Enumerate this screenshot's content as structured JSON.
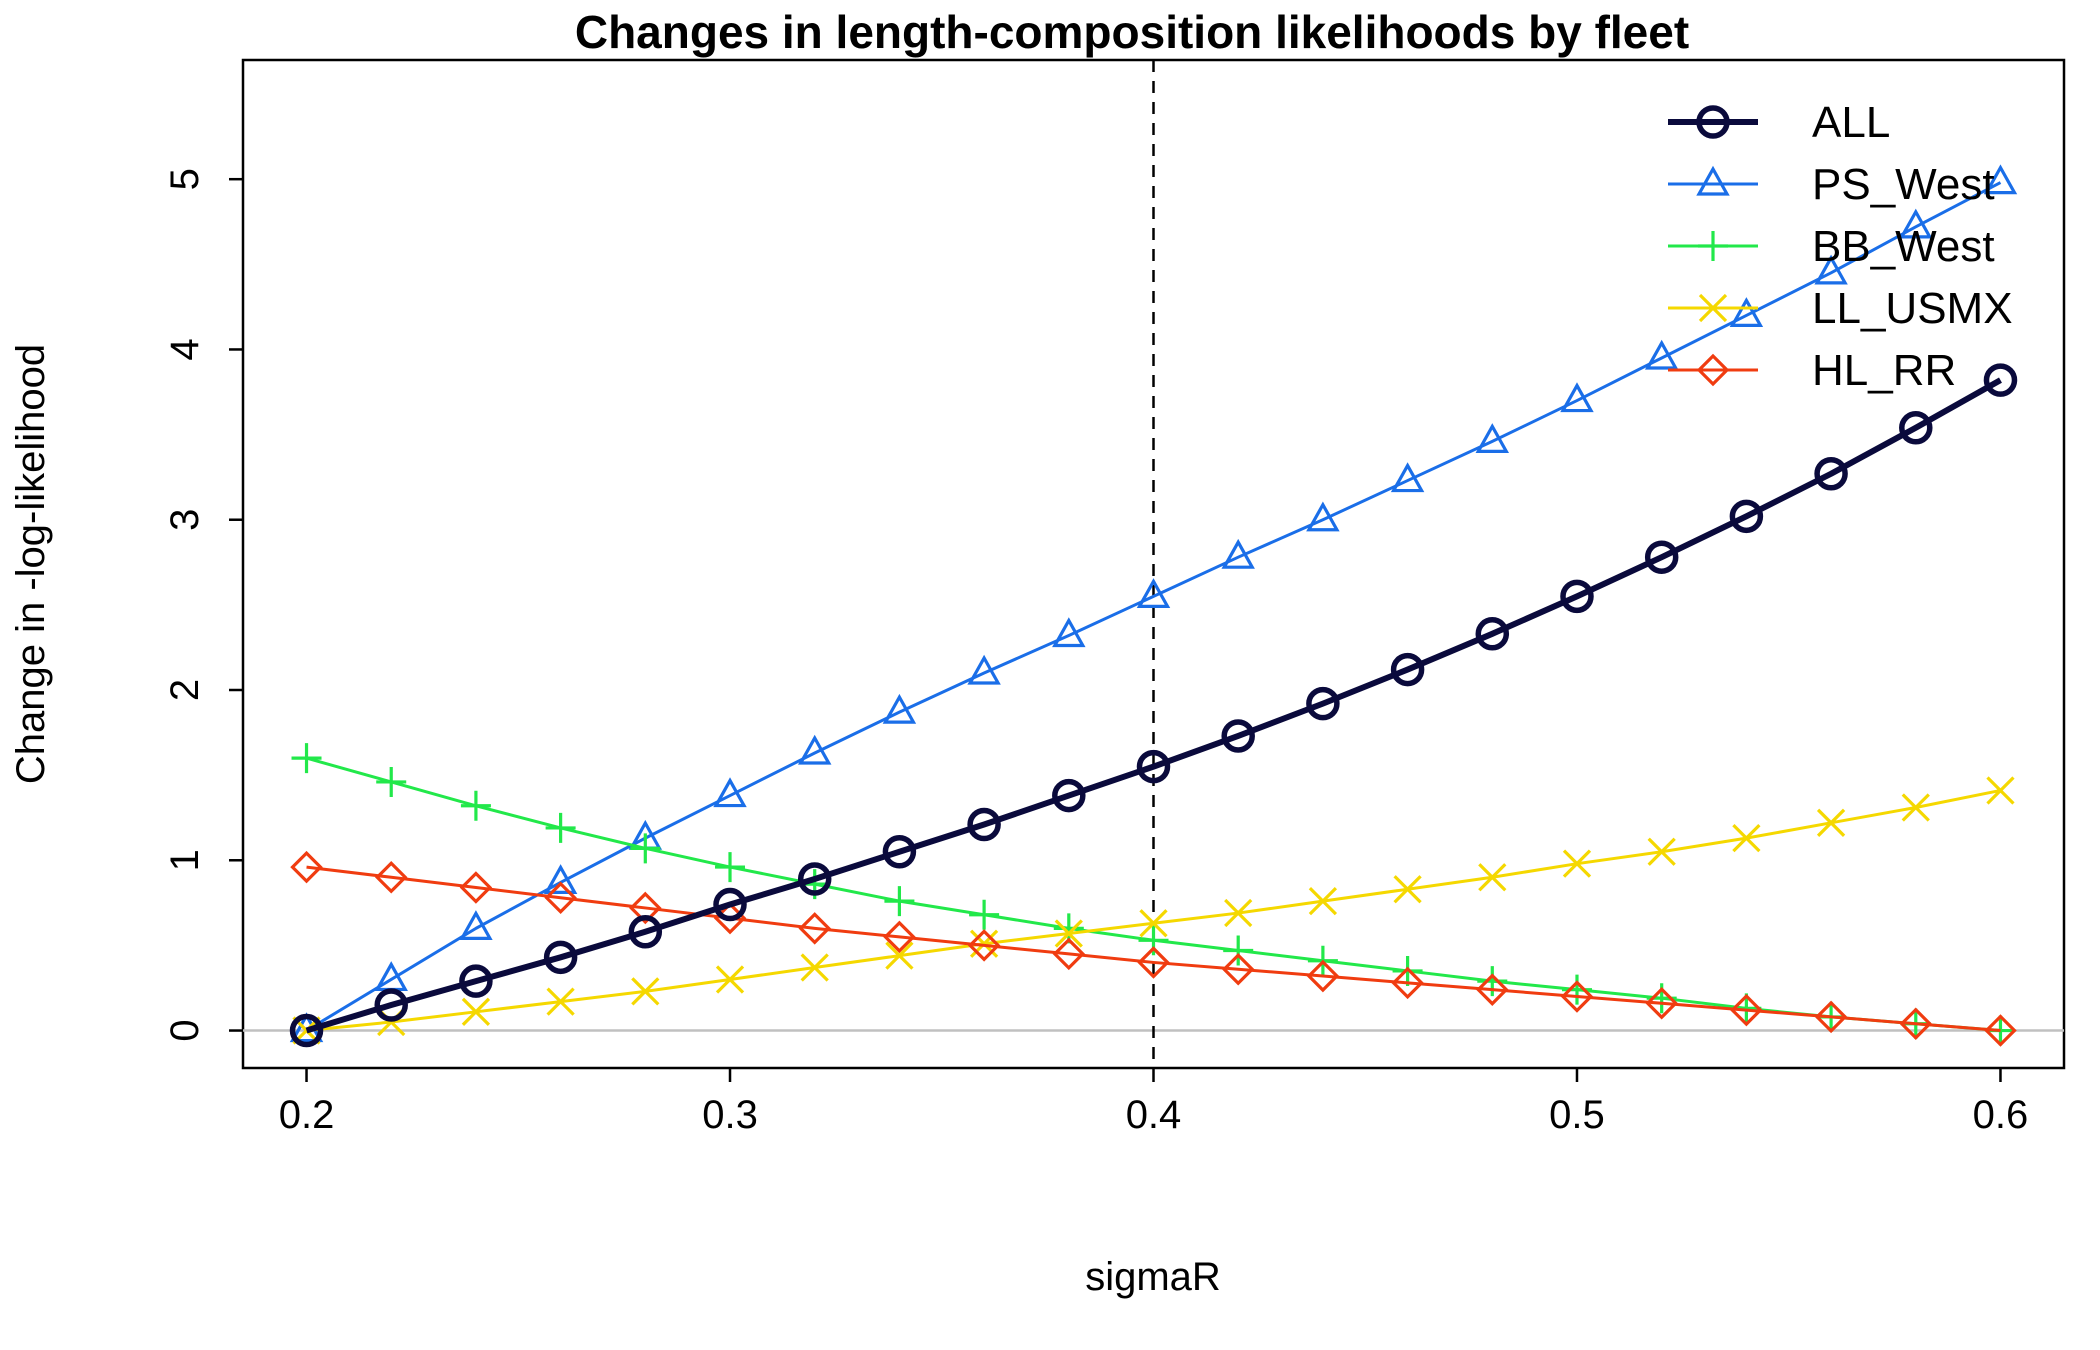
{
  "chart_data": {
    "type": "line",
    "title": "Changes in length-composition likelihoods by fleet",
    "xlabel": "sigmaR",
    "ylabel": "Change in -log-likelihood",
    "xlim": [
      0.185,
      0.615
    ],
    "ylim": [
      -0.22,
      5.7
    ],
    "x_ticks": [
      0.2,
      0.3,
      0.4,
      0.5,
      0.6
    ],
    "x_tick_labels": [
      "0.2",
      "0.3",
      "0.4",
      "0.5",
      "0.6"
    ],
    "y_ticks": [
      0,
      1,
      2,
      3,
      4,
      5
    ],
    "y_tick_labels": [
      "0",
      "1",
      "2",
      "3",
      "4",
      "5"
    ],
    "reference_hline": 0,
    "reference_vline": 0.4,
    "legend_position": "top-right",
    "grid": false,
    "x": [
      0.2,
      0.22,
      0.24,
      0.26,
      0.28,
      0.3,
      0.32,
      0.34,
      0.36,
      0.38,
      0.4,
      0.42,
      0.44,
      0.46,
      0.48,
      0.5,
      0.52,
      0.54,
      0.56,
      0.58,
      0.6
    ],
    "series": [
      {
        "name": "ALL",
        "color": "#0a0a3c",
        "marker": "circle",
        "lineWidth": 6,
        "values": [
          0,
          0.15,
          0.29,
          0.43,
          0.58,
          0.74,
          0.89,
          1.05,
          1.21,
          1.38,
          1.55,
          1.73,
          1.92,
          2.12,
          2.33,
          2.55,
          2.78,
          3.02,
          3.27,
          3.54,
          3.82
        ]
      },
      {
        "name": "PS_West",
        "color": "#1a6ee8",
        "marker": "triangle",
        "lineWidth": 3,
        "values": [
          0,
          0.3,
          0.6,
          0.87,
          1.13,
          1.38,
          1.63,
          1.87,
          2.1,
          2.32,
          2.55,
          2.78,
          3.0,
          3.23,
          3.46,
          3.7,
          3.95,
          4.2,
          4.45,
          4.72,
          4.98
        ]
      },
      {
        "name": "BB_West",
        "color": "#22e84a",
        "marker": "plus",
        "lineWidth": 3,
        "values": [
          1.6,
          1.46,
          1.32,
          1.19,
          1.07,
          0.96,
          0.86,
          0.76,
          0.68,
          0.6,
          0.53,
          0.47,
          0.41,
          0.35,
          0.29,
          0.24,
          0.19,
          0.13,
          0.08,
          0.04,
          0
        ]
      },
      {
        "name": "LL_USMX",
        "color": "#f5d800",
        "marker": "cross",
        "lineWidth": 3,
        "values": [
          0,
          0.05,
          0.11,
          0.17,
          0.23,
          0.3,
          0.37,
          0.44,
          0.51,
          0.57,
          0.63,
          0.69,
          0.76,
          0.83,
          0.9,
          0.98,
          1.05,
          1.13,
          1.22,
          1.31,
          1.41
        ]
      },
      {
        "name": "HL_RR",
        "color": "#f03c10",
        "marker": "diamond",
        "lineWidth": 3,
        "values": [
          0.96,
          0.9,
          0.84,
          0.78,
          0.72,
          0.66,
          0.6,
          0.55,
          0.5,
          0.45,
          0.4,
          0.36,
          0.32,
          0.28,
          0.24,
          0.2,
          0.16,
          0.12,
          0.08,
          0.04,
          0
        ]
      }
    ]
  }
}
